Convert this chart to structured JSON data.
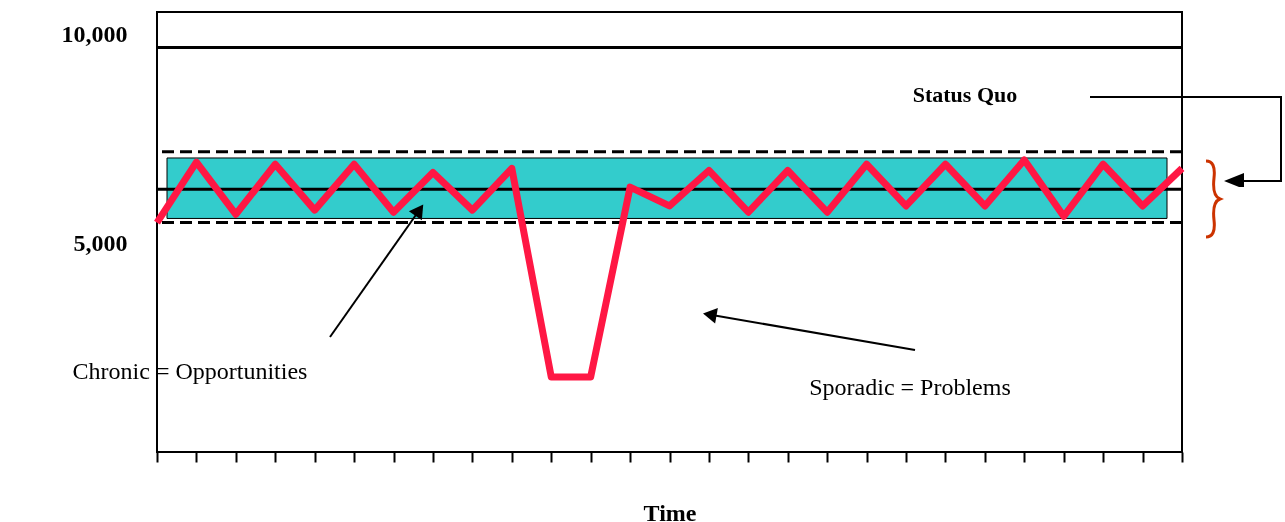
{
  "chart_data": {
    "type": "line",
    "xlabel": "Time",
    "tick_labels": "y",
    "ylim": [
      0,
      10550
    ],
    "yticks": [
      {
        "value": 5000,
        "label": "5,000"
      },
      {
        "value": 10000,
        "label": "10,000"
      }
    ],
    "categories": [
      null,
      null,
      null,
      null,
      null,
      null,
      null,
      null,
      null,
      null,
      null,
      null,
      null,
      null,
      null,
      null,
      null,
      null,
      null,
      null,
      null,
      null,
      null,
      null,
      null,
      null,
      null
    ],
    "series": [
      {
        "color": "#ff1744",
        "values": [
          5500,
          6950,
          5700,
          6900,
          5800,
          6900,
          5750,
          6700,
          5800,
          6800,
          1800,
          1800,
          6350,
          5900,
          6750,
          5750,
          6750,
          5750,
          6900,
          5900,
          6900,
          5900,
          7000,
          5650,
          6900,
          5900,
          6800
        ]
      }
    ],
    "bands": [
      {
        "axis": "y",
        "from": 5600,
        "to": 7050,
        "color": "#33cccc"
      }
    ],
    "ref_lines": [
      {
        "axis": "y",
        "value": 9700,
        "color": "#000000",
        "line_style": "solid"
      },
      {
        "axis": "y",
        "value": 7200,
        "color": "#000000",
        "line_style": "dashed"
      },
      {
        "axis": "y",
        "value": 6300,
        "color": "#000000",
        "line_style": "solid"
      },
      {
        "axis": "y",
        "value": 5500,
        "color": "#000000",
        "line_style": "dashed"
      }
    ],
    "annotations": [
      "Status Quo",
      "Chronic = Opportunities",
      "Sporadic = Problems"
    ],
    "grid": false,
    "marker": "none",
    "line_style": "solid"
  }
}
